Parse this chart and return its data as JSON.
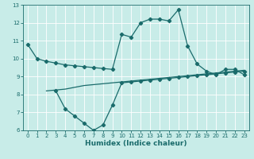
{
  "xlabel": "Humidex (Indice chaleur)",
  "xlim": [
    -0.5,
    23.5
  ],
  "ylim": [
    6,
    13
  ],
  "xticks": [
    0,
    1,
    2,
    3,
    4,
    5,
    6,
    7,
    8,
    9,
    10,
    11,
    12,
    13,
    14,
    15,
    16,
    17,
    18,
    19,
    20,
    21,
    22,
    23
  ],
  "yticks": [
    6,
    7,
    8,
    9,
    10,
    11,
    12,
    13
  ],
  "bg_color": "#c8ece8",
  "grid_color": "#ffffff",
  "line_color": "#1a6b6b",
  "line1_x": [
    0,
    1,
    2,
    3,
    4,
    5,
    6,
    7,
    8,
    9,
    10,
    11,
    12,
    13,
    14,
    15,
    16,
    17,
    18,
    19,
    20,
    21,
    22,
    23
  ],
  "line1_y": [
    10.8,
    10.0,
    9.85,
    9.75,
    9.65,
    9.6,
    9.55,
    9.5,
    9.45,
    9.4,
    11.35,
    11.2,
    12.0,
    12.2,
    12.2,
    12.1,
    12.72,
    10.7,
    9.7,
    9.3,
    9.1,
    9.4,
    9.4,
    9.1
  ],
  "line2_x": [
    2,
    3,
    4,
    5,
    6,
    7,
    8,
    9,
    10,
    11,
    12,
    13,
    14,
    15,
    16,
    17,
    18,
    19,
    20,
    21,
    22,
    23
  ],
  "line2_y": [
    8.2,
    8.25,
    8.3,
    8.4,
    8.5,
    8.55,
    8.6,
    8.65,
    8.7,
    8.75,
    8.8,
    8.85,
    8.9,
    8.95,
    9.0,
    9.05,
    9.1,
    9.15,
    9.2,
    9.25,
    9.3,
    9.35
  ],
  "line3_x": [
    3,
    4,
    5,
    6,
    7,
    8,
    9,
    10,
    11,
    12,
    13,
    14,
    15,
    16,
    17,
    18,
    19,
    20,
    21,
    22,
    23
  ],
  "line3_y": [
    8.2,
    7.2,
    6.8,
    6.4,
    6.0,
    6.3,
    7.4,
    8.65,
    8.7,
    8.75,
    8.8,
    8.85,
    8.9,
    8.95,
    9.0,
    9.05,
    9.1,
    9.15,
    9.2,
    9.25,
    9.3
  ],
  "marker": "D",
  "markersize": 2.2,
  "linewidth": 0.9,
  "tick_fontsize": 5.0,
  "label_fontsize": 6.5
}
